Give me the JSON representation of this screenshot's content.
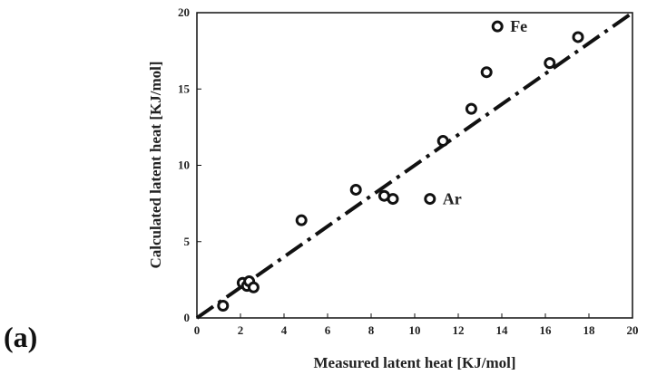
{
  "panel_label": "(a)",
  "chart_data": {
    "type": "scatter",
    "title": "",
    "xlabel": "Measured latent heat [KJ/mol]",
    "ylabel": "Calculated latent heat [KJ/mol]",
    "xlim": [
      0,
      20
    ],
    "ylim": [
      0,
      20
    ],
    "xticks": [
      "0",
      "2",
      "4",
      "6",
      "8",
      "10",
      "12",
      "14",
      "16",
      "18",
      "20"
    ],
    "yticks": [
      "0",
      "5",
      "10",
      "15",
      "20"
    ],
    "grid": false,
    "marker": "open-circle",
    "reference_line": {
      "style": "dash-dot",
      "x": [
        0,
        20
      ],
      "y": [
        0,
        20
      ]
    },
    "points": [
      {
        "x": 1.2,
        "y": 0.8
      },
      {
        "x": 2.1,
        "y": 2.3
      },
      {
        "x": 2.3,
        "y": 2.1
      },
      {
        "x": 2.4,
        "y": 2.4
      },
      {
        "x": 2.6,
        "y": 2.0
      },
      {
        "x": 4.8,
        "y": 6.4
      },
      {
        "x": 7.3,
        "y": 8.4
      },
      {
        "x": 8.6,
        "y": 8.0
      },
      {
        "x": 9.0,
        "y": 7.8
      },
      {
        "x": 10.7,
        "y": 7.8
      },
      {
        "x": 11.3,
        "y": 11.6
      },
      {
        "x": 12.6,
        "y": 13.7
      },
      {
        "x": 13.3,
        "y": 16.1
      },
      {
        "x": 13.8,
        "y": 19.1
      },
      {
        "x": 16.2,
        "y": 16.7
      },
      {
        "x": 17.5,
        "y": 18.4
      }
    ],
    "annotations": [
      {
        "text": "Fe",
        "x": 13.8,
        "y": 19.1
      },
      {
        "text": "Ar",
        "x": 10.7,
        "y": 7.8
      }
    ]
  }
}
